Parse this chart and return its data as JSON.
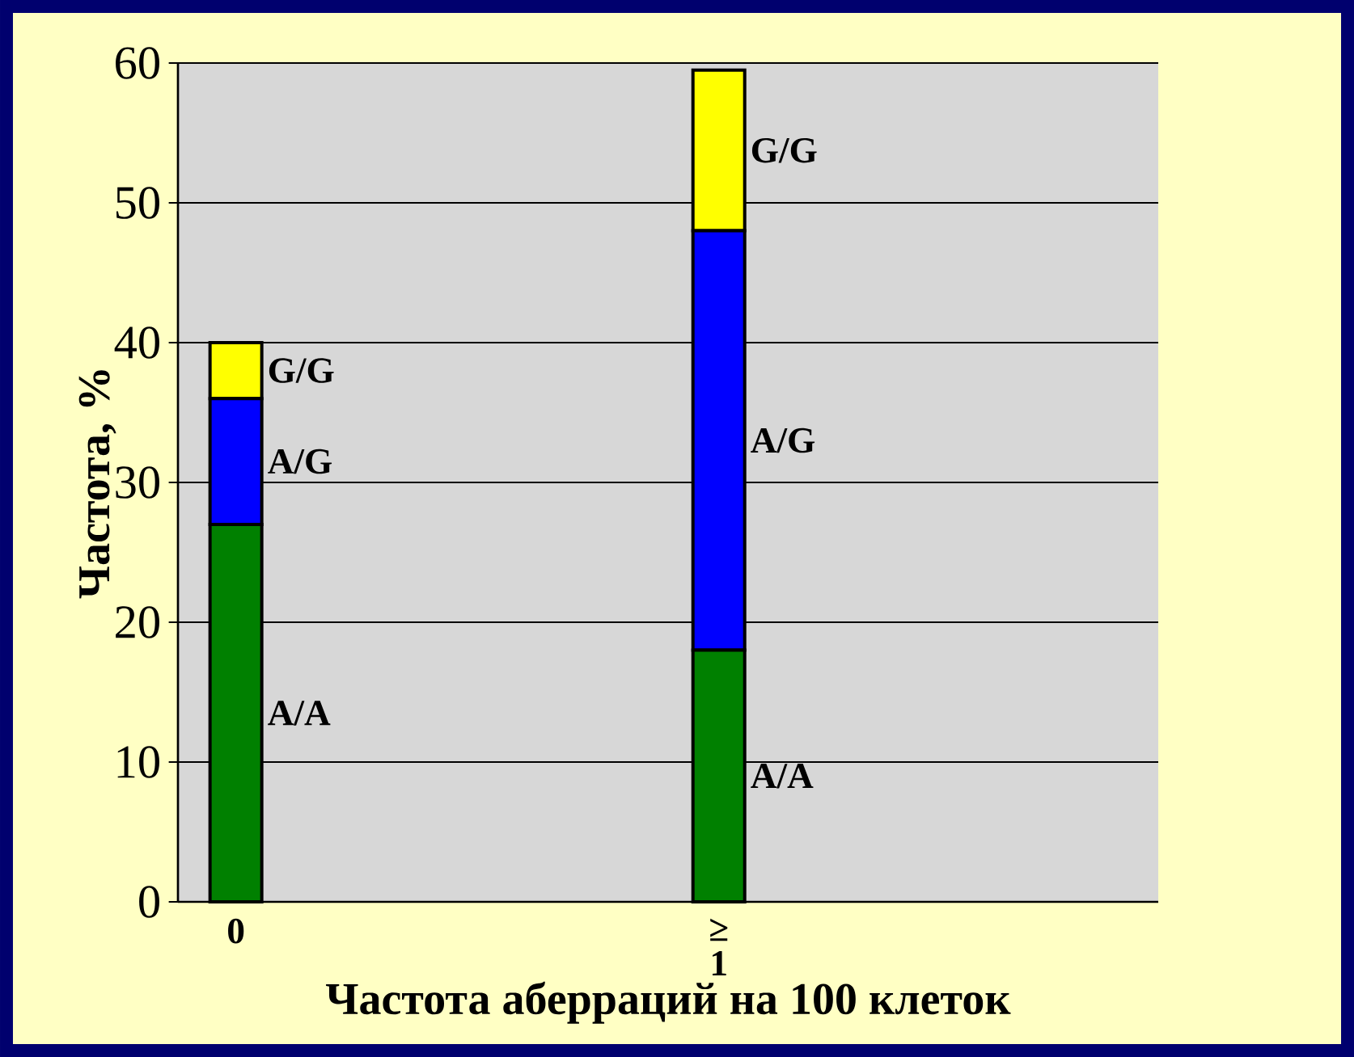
{
  "chart_data": {
    "type": "bar",
    "stacked": true,
    "xlabel": "Частота аберраций на 100 клеток",
    "ylabel": "Частота, %",
    "categories": [
      "0",
      "≥ 1"
    ],
    "series": [
      {
        "name": "A/A",
        "color": "#008000",
        "values": [
          27,
          18
        ]
      },
      {
        "name": "A/G",
        "color": "#0000ff",
        "values": [
          9,
          30
        ]
      },
      {
        "name": "G/G",
        "color": "#ffff00",
        "values": [
          4,
          11.5
        ]
      }
    ],
    "ylim": [
      0,
      60
    ],
    "yticks": [
      0,
      10,
      20,
      30,
      40,
      50,
      60
    ],
    "grid": "y",
    "legend": false
  }
}
